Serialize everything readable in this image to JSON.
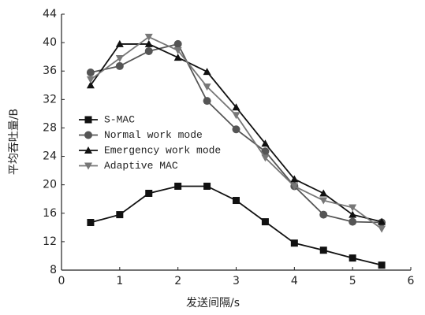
{
  "chart_data": {
    "type": "line",
    "xlabel": "发送间隔/s",
    "ylabel": "平均吞吐量/B",
    "x": [
      0.5,
      1,
      1.5,
      2,
      2.5,
      3,
      3.5,
      4,
      4.5,
      5,
      5.5
    ],
    "series": [
      {
        "name": "S-MAC",
        "color": "#111111",
        "marker": "square",
        "values": [
          14.7,
          15.8,
          18.8,
          19.8,
          19.8,
          17.8,
          14.8,
          11.8,
          10.8,
          9.7,
          8.7
        ]
      },
      {
        "name": "Normal work mode",
        "color": "#555555",
        "marker": "circle",
        "values": [
          35.8,
          36.7,
          38.8,
          39.8,
          31.8,
          27.8,
          24.7,
          19.8,
          15.8,
          14.8,
          14.7
        ]
      },
      {
        "name": "Emergency work mode",
        "color": "#111111",
        "marker": "triangle-up",
        "values": [
          34.0,
          39.8,
          39.8,
          37.9,
          35.9,
          30.9,
          25.8,
          20.8,
          18.8,
          15.8,
          14.8
        ]
      },
      {
        "name": "Adaptive MAC",
        "color": "#777777",
        "marker": "triangle-down",
        "values": [
          34.8,
          37.8,
          40.8,
          38.9,
          33.8,
          29.8,
          23.8,
          19.8,
          17.8,
          16.8,
          13.8
        ]
      }
    ],
    "xlim": [
      0,
      6
    ],
    "xticks": [
      0,
      1,
      2,
      3,
      4,
      5,
      6
    ],
    "ylim": [
      8,
      44
    ],
    "yticks": [
      8,
      12,
      16,
      20,
      24,
      28,
      32,
      36,
      40,
      44
    ],
    "grid": false,
    "legend": "center-left"
  }
}
